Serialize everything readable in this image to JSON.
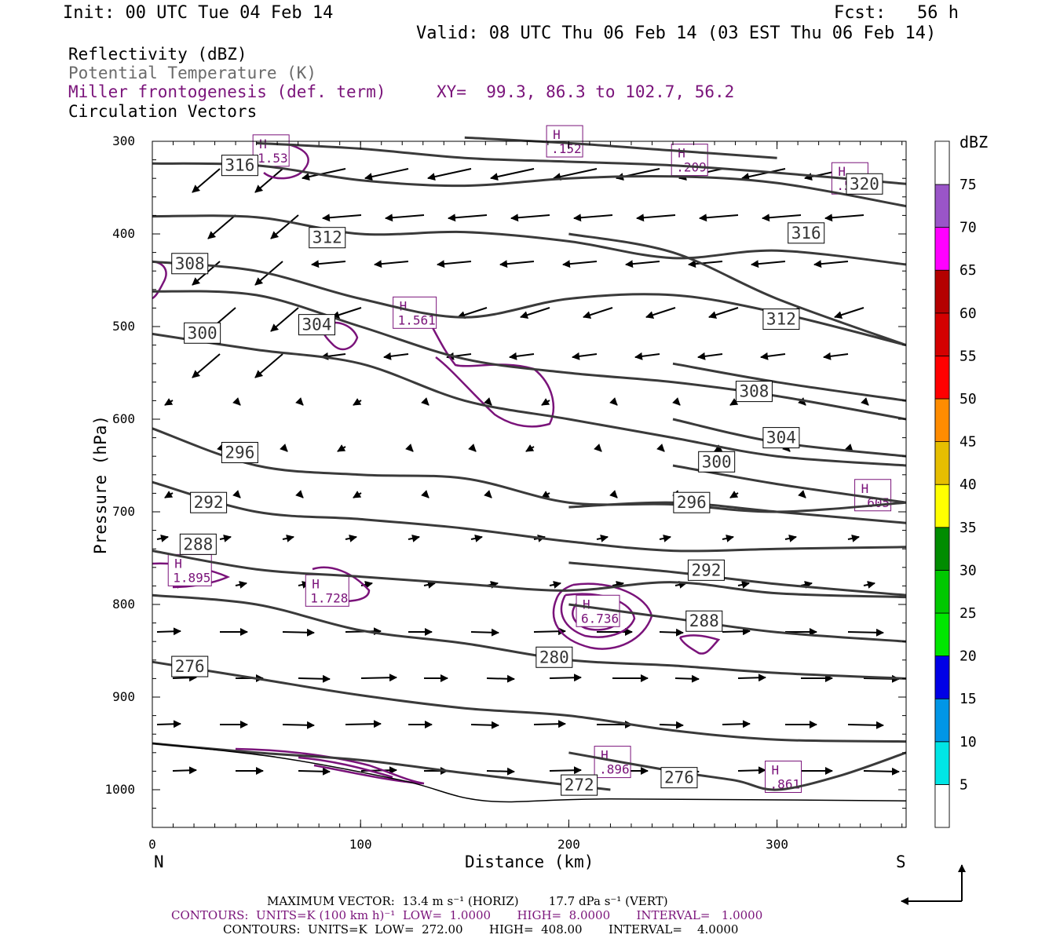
{
  "header": {
    "init": "Init: 00 UTC Tue 04 Feb 14",
    "fcst": "Fcst:   56 h",
    "valid": "Valid: 08 UTC Thu 06 Feb 14 (03 EST Thu 06 Feb 14)"
  },
  "legend": {
    "reflectivity": "Reflectivity (dBZ)",
    "theta": "Potential Temperature (K)",
    "frontogenesis": "Miller frontogenesis (def. term)",
    "xy": "XY=  99.3, 86.3 to 102.7, 56.2",
    "vectors": "Circulation Vectors"
  },
  "colors": {
    "theta": "#3a3a3a",
    "frontogenesis": "#7a137a",
    "vectors": "#000000"
  },
  "chart_data": {
    "type": "contour",
    "xlabel": "Distance (km)",
    "ylabel": "Pressure (hPa)",
    "xlim": [
      0,
      362
    ],
    "ylim": [
      1040,
      300
    ],
    "x_ticks": [
      "0",
      "100",
      "200",
      "300"
    ],
    "y_ticks": [
      "300",
      "400",
      "500",
      "600",
      "700",
      "800",
      "900",
      "1000"
    ],
    "left_end": "N",
    "right_end": "S",
    "theta_contours": [
      {
        "value": "316",
        "label_at": [
          42,
          326
        ],
        "points": [
          [
            0,
            324
          ],
          [
            50,
            326
          ],
          [
            100,
            342
          ],
          [
            150,
            348
          ],
          [
            200,
            340
          ],
          [
            250,
            338
          ],
          [
            300,
            345
          ],
          [
            362,
            370
          ]
        ]
      },
      {
        "value": "320",
        "label_at": [
          342,
          346
        ],
        "points": [
          [
            50,
            302
          ],
          [
            100,
            308
          ],
          [
            150,
            318
          ],
          [
            200,
            322
          ],
          [
            250,
            326
          ],
          [
            300,
            334
          ],
          [
            362,
            346
          ]
        ]
      },
      {
        "value": "312",
        "label_at": [
          84,
          404
        ],
        "points": [
          [
            0,
            381
          ],
          [
            50,
            382
          ],
          [
            100,
            400
          ],
          [
            150,
            398
          ],
          [
            200,
            408
          ],
          [
            250,
            426
          ],
          [
            300,
            418
          ],
          [
            362,
            433
          ]
        ]
      },
      {
        "value": "316",
        "label_at": [
          314,
          399
        ],
        "points": [
          [
            150,
            296
          ],
          [
            200,
            302
          ],
          [
            250,
            310
          ],
          [
            300,
            318
          ]
        ]
      },
      {
        "value": "308",
        "label_at": [
          18,
          432
        ],
        "points": [
          [
            0,
            430
          ],
          [
            50,
            440
          ],
          [
            100,
            470
          ],
          [
            150,
            490
          ],
          [
            200,
            470
          ],
          [
            250,
            466
          ],
          [
            300,
            485
          ],
          [
            362,
            520
          ]
        ]
      },
      {
        "value": "312",
        "label_at": [
          302,
          492
        ],
        "points": [
          [
            200,
            400
          ],
          [
            250,
            420
          ],
          [
            300,
            470
          ],
          [
            362,
            520
          ]
        ]
      },
      {
        "value": "304",
        "label_at": [
          79,
          498
        ],
        "points": [
          [
            0,
            462
          ],
          [
            50,
            466
          ],
          [
            100,
            500
          ],
          [
            150,
            535
          ],
          [
            200,
            550
          ],
          [
            250,
            560
          ],
          [
            300,
            575
          ],
          [
            362,
            600
          ]
        ]
      },
      {
        "value": "308",
        "label_at": [
          289,
          570
        ],
        "points": [
          [
            250,
            540
          ],
          [
            300,
            560
          ],
          [
            362,
            580
          ]
        ]
      },
      {
        "value": "300",
        "label_at": [
          24,
          507
        ],
        "points": [
          [
            0,
            508
          ],
          [
            50,
            525
          ],
          [
            100,
            540
          ],
          [
            150,
            580
          ],
          [
            200,
            600
          ],
          [
            250,
            620
          ],
          [
            300,
            640
          ],
          [
            362,
            650
          ]
        ]
      },
      {
        "value": "304",
        "label_at": [
          302,
          620
        ],
        "points": [
          [
            250,
            600
          ],
          [
            300,
            625
          ],
          [
            362,
            640
          ]
        ]
      },
      {
        "value": "296",
        "label_at": [
          42,
          636
        ],
        "points": [
          [
            0,
            610
          ],
          [
            50,
            650
          ],
          [
            100,
            660
          ],
          [
            150,
            664
          ],
          [
            200,
            690
          ],
          [
            250,
            692
          ],
          [
            300,
            700
          ],
          [
            362,
            690
          ]
        ]
      },
      {
        "value": "300",
        "label_at": [
          271,
          646
        ],
        "points": [
          [
            250,
            650
          ],
          [
            300,
            670
          ],
          [
            362,
            690
          ]
        ]
      },
      {
        "value": "292",
        "label_at": [
          27,
          690
        ],
        "points": [
          [
            0,
            668
          ],
          [
            50,
            700
          ],
          [
            100,
            708
          ],
          [
            150,
            718
          ],
          [
            200,
            732
          ],
          [
            250,
            742
          ],
          [
            300,
            740
          ],
          [
            362,
            738
          ]
        ]
      },
      {
        "value": "296",
        "label_at": [
          259,
          690
        ],
        "points": [
          [
            200,
            695
          ],
          [
            250,
            690
          ],
          [
            300,
            700
          ],
          [
            362,
            712
          ]
        ]
      },
      {
        "value": "288",
        "label_at": [
          22,
          735
        ],
        "points": [
          [
            0,
            742
          ],
          [
            50,
            762
          ],
          [
            100,
            770
          ],
          [
            150,
            778
          ],
          [
            200,
            785
          ],
          [
            250,
            776
          ],
          [
            300,
            788
          ],
          [
            362,
            792
          ]
        ]
      },
      {
        "value": "292",
        "label_at": [
          266,
          763
        ],
        "points": [
          [
            200,
            755
          ],
          [
            250,
            765
          ],
          [
            300,
            778
          ],
          [
            362,
            790
          ]
        ]
      },
      {
        "value": "288",
        "label_at": [
          265,
          818
        ],
        "points": [
          [
            200,
            800
          ],
          [
            250,
            815
          ],
          [
            300,
            830
          ],
          [
            362,
            840
          ]
        ]
      },
      {
        "value": "280",
        "label_at": [
          193,
          857
        ],
        "points": [
          [
            0,
            790
          ],
          [
            50,
            800
          ],
          [
            100,
            828
          ],
          [
            150,
            842
          ],
          [
            200,
            860
          ],
          [
            250,
            866
          ],
          [
            300,
            874
          ],
          [
            362,
            880
          ]
        ]
      },
      {
        "value": "276",
        "label_at": [
          18,
          867
        ],
        "points": [
          [
            0,
            862
          ],
          [
            50,
            880
          ],
          [
            100,
            898
          ],
          [
            150,
            912
          ],
          [
            200,
            920
          ],
          [
            250,
            936
          ],
          [
            300,
            946
          ],
          [
            362,
            948
          ]
        ]
      },
      {
        "value": "272",
        "label_at": [
          205,
          995
        ],
        "points": [
          [
            0,
            950
          ],
          [
            50,
            960
          ],
          [
            100,
            968
          ],
          [
            150,
            982
          ],
          [
            200,
            995
          ],
          [
            220,
            1000
          ]
        ]
      },
      {
        "value": "276",
        "label_at": [
          253,
          987
        ],
        "points": [
          [
            200,
            960
          ],
          [
            250,
            980
          ],
          [
            280,
            990
          ],
          [
            300,
            1000
          ],
          [
            330,
            985
          ],
          [
            362,
            960
          ]
        ]
      }
    ],
    "frontogenesis_highs": [
      {
        "label": "H\n1.53",
        "at": [
          57,
          310
        ]
      },
      {
        "label": "H\n.152",
        "at": [
          198,
          300
        ]
      },
      {
        "label": "H\n.209",
        "at": [
          258,
          320
        ]
      },
      {
        "label": "H\n.500",
        "at": [
          335,
          340
        ]
      },
      {
        "label": "H\n1.561",
        "at": [
          126,
          485
        ]
      },
      {
        "label": "H\n.605",
        "at": [
          346,
          682
        ]
      },
      {
        "label": "H\n1.895",
        "at": [
          18,
          763
        ]
      },
      {
        "label": "H\n1.728",
        "at": [
          84,
          785
        ]
      },
      {
        "label": "H\n6.736",
        "at": [
          214,
          807
        ]
      },
      {
        "label": "H\n.896",
        "at": [
          221,
          970
        ]
      },
      {
        "label": "H\n.861",
        "at": [
          303,
          986
        ]
      }
    ],
    "colorbar": {
      "unit": "dBZ",
      "levels": [
        "5",
        "10",
        "15",
        "20",
        "25",
        "30",
        "35",
        "40",
        "45",
        "50",
        "55",
        "60",
        "65",
        "70",
        "75"
      ],
      "colors": [
        "#ffffff",
        "#00e5e5",
        "#0096e6",
        "#0000e6",
        "#00e600",
        "#00c800",
        "#008c00",
        "#ffff00",
        "#e6be00",
        "#ff8c00",
        "#ff0000",
        "#d40000",
        "#b40000",
        "#ff00ff",
        "#9a55c8",
        "#ffffff"
      ]
    }
  },
  "footer": {
    "max_vector": "MAXIMUM VECTOR:  13.4 m s⁻¹ (HORIZ)        17.7 dPa s⁻¹ (VERT)",
    "contours_fronto": "CONTOURS:  UNITS=K (100 km h)⁻¹  LOW=  1.0000       HIGH=  8.0000       INTERVAL=   1.0000",
    "contours_theta": "CONTOURS:  UNITS=K  LOW=  272.00       HIGH=  408.00       INTERVAL=    4.0000"
  }
}
